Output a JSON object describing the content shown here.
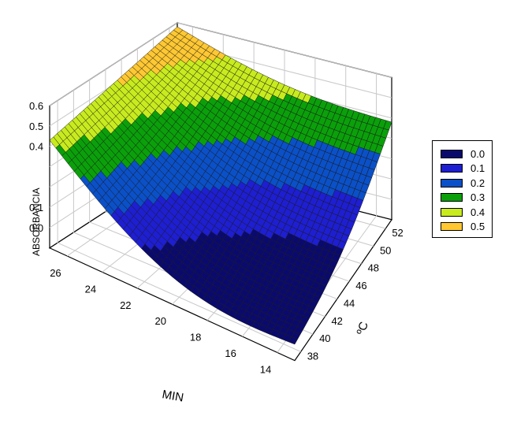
{
  "chart_data": {
    "type": "surface",
    "title": "",
    "axes": {
      "x": {
        "label": "MIN",
        "ticks": [
          "14",
          "16",
          "18",
          "20",
          "22",
          "24",
          "26"
        ],
        "range": [
          13,
          27
        ]
      },
      "y": {
        "label": "ºC",
        "ticks": [
          "38",
          "40",
          "42",
          "44",
          "46",
          "48",
          "50",
          "52"
        ],
        "range": [
          37,
          53
        ]
      },
      "z": {
        "label": "ABSORBANCIA",
        "ticks": [
          "0.0",
          "0.1",
          "",
          "",
          "0.4",
          "0.5",
          "0.6"
        ],
        "range": [
          -0.1,
          0.6
        ]
      }
    },
    "corner_values": [
      {
        "x": 27,
        "y": 37,
        "z": 0.43
      },
      {
        "x": 13,
        "y": 37,
        "z": -0.02
      },
      {
        "x": 27,
        "y": 53,
        "z": 0.58
      },
      {
        "x": 13,
        "y": 53,
        "z": 0.38
      }
    ],
    "colormap": [
      {
        "label": "0.0",
        "color": "#0a0a6e"
      },
      {
        "label": "0.1",
        "color": "#1e1ed2"
      },
      {
        "label": "0.2",
        "color": "#0a50c8"
      },
      {
        "label": "0.3",
        "color": "#0aa00a"
      },
      {
        "label": "0.4",
        "color": "#c8eb1e"
      },
      {
        "label": "0.5",
        "color": "#ffc832"
      }
    ],
    "grid": true,
    "legend_position": "right"
  }
}
